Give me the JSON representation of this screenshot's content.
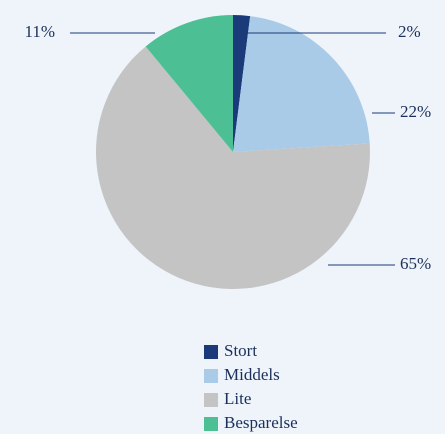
{
  "chart_data": {
    "type": "pie",
    "categories": [
      "Stort",
      "Middels",
      "Lite",
      "Besparelse"
    ],
    "values": [
      2,
      22,
      65,
      11
    ],
    "value_labels": [
      "2%",
      "22%",
      "65%",
      "11%"
    ],
    "colors": [
      "#1b3a7a",
      "#a9cbe7",
      "#c4c4c4",
      "#4dbf94"
    ],
    "legend": "bottom"
  }
}
